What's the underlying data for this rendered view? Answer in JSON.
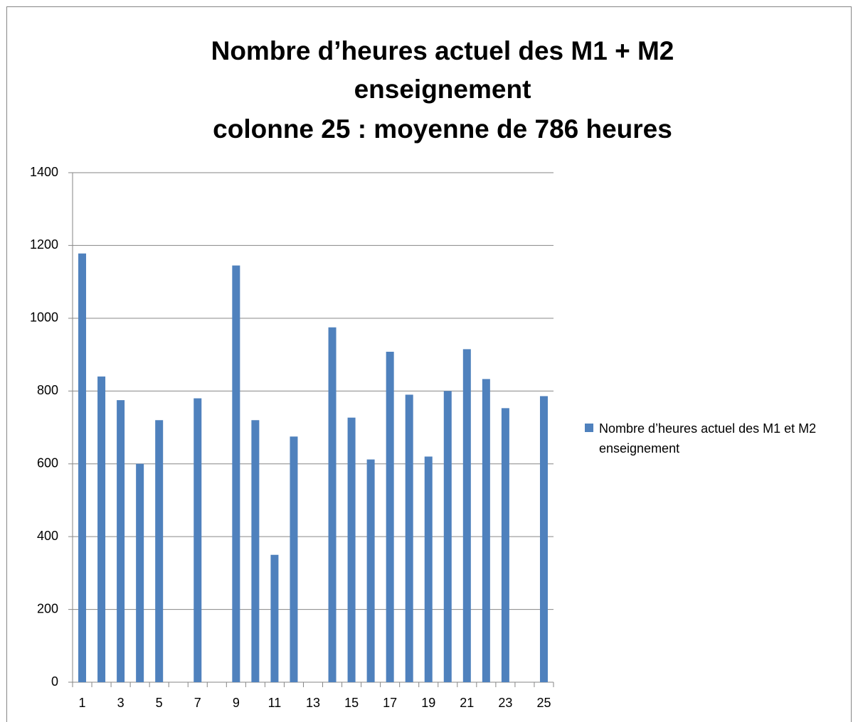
{
  "chart_data": {
    "type": "bar",
    "title": [
      "Nombre d’heures actuel des M1 + M2",
      "enseignement",
      "colonne 25 : moyenne de 786 heures"
    ],
    "categories": [
      "1",
      null,
      "3",
      null,
      "5",
      null,
      "7",
      null,
      "9",
      null,
      "11",
      null,
      "13",
      null,
      "15",
      null,
      "17",
      null,
      "19",
      null,
      "21",
      null,
      "23",
      null,
      "25"
    ],
    "series": [
      {
        "name": "Nombre d’heures actuel des M1 et M2 enseignement",
        "color": "#4f81bd",
        "values": [
          1178,
          840,
          775,
          600,
          720,
          null,
          780,
          null,
          1145,
          720,
          350,
          675,
          null,
          975,
          727,
          612,
          908,
          790,
          620,
          800,
          915,
          833,
          753,
          null,
          786
        ]
      }
    ],
    "ylim": [
      0,
      1400
    ],
    "yticks": [
      0,
      200,
      400,
      600,
      800,
      1000,
      1200,
      1400
    ],
    "grid": true,
    "legend": "right"
  }
}
